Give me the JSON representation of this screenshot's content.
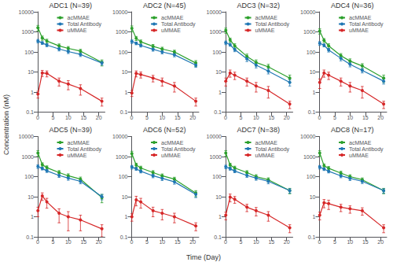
{
  "xlabel": "Time (Day)",
  "ylabel": "Concentration (nM)",
  "chart_data": [
    {
      "type": "line",
      "title": "ADC1 (N=39)",
      "x": [
        0.08,
        1.5,
        3,
        7,
        10,
        14,
        21
      ],
      "series": [
        {
          "name": "acMMAE",
          "color": "#2ca02c",
          "values": [
            1600,
            500,
            350,
            200,
            150,
            110,
            30
          ],
          "errors": [
            500,
            120,
            80,
            50,
            35,
            25,
            10
          ]
        },
        {
          "name": "Total Antibody",
          "color": "#1f77b4",
          "values": [
            350,
            280,
            220,
            140,
            105,
            75,
            28
          ],
          "errors": [
            70,
            45,
            38,
            28,
            22,
            16,
            6
          ]
        },
        {
          "name": "uMMAE",
          "color": "#d62728",
          "values": [
            0.8,
            9,
            8.5,
            3.5,
            2.5,
            1.5,
            0.35
          ],
          "errors": [
            0.3,
            3,
            2.8,
            1.5,
            1.2,
            0.8,
            0.15
          ]
        }
      ],
      "xlim": [
        -0.5,
        22
      ],
      "xticks": [
        0,
        5,
        10,
        15,
        20
      ],
      "ylim": [
        0.1,
        10000
      ],
      "yticks": [
        0.1,
        1,
        10,
        100,
        1000,
        10000
      ],
      "log": "y",
      "grid": false,
      "legend": "upper right",
      "marker": "circle"
    },
    {
      "type": "line",
      "title": "ADC2 (N=45)",
      "x": [
        0.08,
        1.5,
        3,
        7,
        10,
        14,
        21
      ],
      "series": [
        {
          "name": "acMMAE",
          "color": "#2ca02c",
          "values": [
            1500,
            480,
            320,
            190,
            140,
            100,
            28
          ],
          "errors": [
            480,
            110,
            75,
            45,
            32,
            22,
            9
          ]
        },
        {
          "name": "Total Antibody",
          "color": "#1f77b4",
          "values": [
            330,
            270,
            210,
            135,
            100,
            72,
            22
          ],
          "errors": [
            65,
            42,
            35,
            26,
            20,
            15,
            5
          ]
        },
        {
          "name": "uMMAE",
          "color": "#d62728",
          "values": [
            0.9,
            8.5,
            7.5,
            5,
            3.5,
            2,
            0.35
          ],
          "errors": [
            0.3,
            2.8,
            2.5,
            1.8,
            1.5,
            1.0,
            0.15
          ]
        }
      ],
      "xlim": [
        -0.5,
        22
      ],
      "xticks": [
        0,
        5,
        10,
        15,
        20
      ],
      "ylim": [
        0.1,
        10000
      ],
      "yticks": [
        0.1,
        1,
        10,
        100,
        1000,
        10000
      ],
      "log": "y",
      "grid": false,
      "legend": "upper right",
      "marker": "circle"
    },
    {
      "type": "line",
      "title": "ADC3 (N=32)",
      "x": [
        0.08,
        1.5,
        3,
        7,
        10,
        14,
        21
      ],
      "series": [
        {
          "name": "acMMAE",
          "color": "#2ca02c",
          "values": [
            1200,
            400,
            200,
            60,
            30,
            18,
            5
          ],
          "errors": [
            350,
            90,
            55,
            18,
            10,
            6,
            2
          ]
        },
        {
          "name": "Total Antibody",
          "color": "#1f77b4",
          "values": [
            290,
            230,
            130,
            45,
            22,
            11,
            3
          ],
          "errors": [
            60,
            38,
            27,
            12,
            6,
            3,
            1
          ]
        },
        {
          "name": "uMMAE",
          "color": "#d62728",
          "values": [
            3.5,
            9,
            7,
            3.5,
            2,
            1.2,
            0.25
          ],
          "errors": [
            1.5,
            3.5,
            2.8,
            1.5,
            1.0,
            0.7,
            0.1
          ]
        }
      ],
      "xlim": [
        -0.5,
        22
      ],
      "xticks": [
        0,
        5,
        10,
        15,
        20
      ],
      "ylim": [
        0.1,
        10000
      ],
      "yticks": [
        0.1,
        1,
        10,
        100,
        1000,
        10000
      ],
      "log": "y",
      "grid": false,
      "legend": "upper right",
      "marker": "circle"
    },
    {
      "type": "line",
      "title": "ADC4 (N=36)",
      "x": [
        0.08,
        1.5,
        3,
        7,
        10,
        14,
        21
      ],
      "series": [
        {
          "name": "acMMAE",
          "color": "#2ca02c",
          "values": [
            1100,
            380,
            200,
            65,
            35,
            20,
            5
          ],
          "errors": [
            320,
            85,
            55,
            18,
            10,
            6,
            2
          ]
        },
        {
          "name": "Total Antibody",
          "color": "#1f77b4",
          "values": [
            270,
            215,
            125,
            48,
            24,
            12,
            3.5
          ],
          "errors": [
            58,
            36,
            26,
            12,
            6,
            3,
            1
          ]
        },
        {
          "name": "uMMAE",
          "color": "#d62728",
          "values": [
            3,
            9,
            7,
            3.5,
            2,
            1.2,
            0.25
          ],
          "errors": [
            1.5,
            3.5,
            2.8,
            1.5,
            1.0,
            0.7,
            0.1
          ]
        }
      ],
      "xlim": [
        -0.5,
        22
      ],
      "xticks": [
        0,
        5,
        10,
        15,
        20
      ],
      "ylim": [
        0.1,
        10000
      ],
      "yticks": [
        0.1,
        1,
        10,
        100,
        1000,
        10000
      ],
      "log": "y",
      "grid": false,
      "legend": "upper right",
      "marker": "circle"
    },
    {
      "type": "line",
      "title": "ADC5 (N=39)",
      "x": [
        0.08,
        1.5,
        3,
        7,
        10,
        14,
        21
      ],
      "series": [
        {
          "name": "acMMAE",
          "color": "#2ca02c",
          "values": [
            1500,
            400,
            280,
            160,
            110,
            75,
            9
          ],
          "errors": [
            480,
            90,
            65,
            40,
            28,
            20,
            4
          ]
        },
        {
          "name": "Total Antibody",
          "color": "#1f77b4",
          "values": [
            320,
            255,
            195,
            115,
            85,
            58,
            10
          ],
          "errors": [
            65,
            40,
            34,
            24,
            19,
            14,
            3
          ]
        },
        {
          "name": "uMMAE",
          "color": "#d62728",
          "values": [
            2,
            11,
            5.5,
            1.5,
            1.0,
            0.7,
            0.25
          ],
          "errors": [
            1.0,
            4.5,
            2.8,
            1.0,
            0.8,
            0.5,
            0.15
          ]
        }
      ],
      "xlim": [
        -0.5,
        22
      ],
      "xticks": [
        0,
        5,
        10,
        15,
        20
      ],
      "ylim": [
        0.1,
        10000
      ],
      "yticks": [
        0.1,
        1,
        10,
        100,
        1000,
        10000
      ],
      "log": "y",
      "grid": false,
      "legend": "upper right",
      "marker": "circle"
    },
    {
      "type": "line",
      "title": "ADC6 (N=52)",
      "x": [
        0.08,
        1.5,
        3,
        7,
        10,
        14,
        21
      ],
      "series": [
        {
          "name": "acMMAE",
          "color": "#2ca02c",
          "values": [
            1400,
            380,
            270,
            160,
            110,
            75,
            15
          ],
          "errors": [
            440,
            85,
            62,
            38,
            26,
            18,
            5
          ]
        },
        {
          "name": "Total Antibody",
          "color": "#1f77b4",
          "values": [
            300,
            245,
            185,
            110,
            82,
            55,
            13
          ],
          "errors": [
            62,
            38,
            32,
            22,
            18,
            13,
            4
          ]
        },
        {
          "name": "uMMAE",
          "color": "#d62728",
          "values": [
            1,
            7,
            5.5,
            2,
            1.5,
            1.0,
            0.35
          ],
          "errors": [
            0.4,
            3.5,
            2.8,
            1.0,
            0.8,
            0.5,
            0.15
          ]
        }
      ],
      "xlim": [
        -0.5,
        22
      ],
      "xticks": [
        0,
        5,
        10,
        15,
        20
      ],
      "ylim": [
        0.1,
        10000
      ],
      "yticks": [
        0.1,
        1,
        10,
        100,
        1000,
        10000
      ],
      "log": "y",
      "grid": false,
      "legend": "upper right",
      "marker": "circle"
    },
    {
      "type": "line",
      "title": "ADC7 (N=38)",
      "x": [
        0.08,
        1.5,
        3,
        7,
        10,
        14,
        21
      ],
      "series": [
        {
          "name": "acMMAE",
          "color": "#2ca02c",
          "values": [
            1500,
            380,
            270,
            160,
            100,
            70,
            20
          ],
          "errors": [
            480,
            85,
            62,
            38,
            25,
            17,
            6
          ]
        },
        {
          "name": "Total Antibody",
          "color": "#1f77b4",
          "values": [
            310,
            250,
            190,
            115,
            85,
            58,
            20
          ],
          "errors": [
            64,
            40,
            33,
            23,
            19,
            14,
            5
          ]
        },
        {
          "name": "uMMAE",
          "color": "#d62728",
          "values": [
            1.2,
            9.5,
            7.5,
            3,
            2,
            1.2,
            0.28
          ],
          "errors": [
            0.5,
            4.0,
            2.8,
            1.2,
            0.9,
            0.6,
            0.12
          ]
        }
      ],
      "xlim": [
        -0.5,
        22
      ],
      "xticks": [
        0,
        5,
        10,
        15,
        20
      ],
      "ylim": [
        0.1,
        10000
      ],
      "yticks": [
        0.1,
        1,
        10,
        100,
        1000,
        10000
      ],
      "log": "y",
      "grid": false,
      "legend": "upper right",
      "marker": "circle"
    },
    {
      "type": "line",
      "title": "ADC8 (N=17)",
      "x": [
        0.08,
        1.5,
        3,
        7,
        10,
        14,
        21
      ],
      "series": [
        {
          "name": "acMMAE",
          "color": "#2ca02c",
          "values": [
            1500,
            350,
            260,
            150,
            100,
            70,
            20
          ],
          "errors": [
            450,
            80,
            60,
            35,
            24,
            16,
            6
          ]
        },
        {
          "name": "Total Antibody",
          "color": "#1f77b4",
          "values": [
            300,
            240,
            185,
            110,
            82,
            58,
            20
          ],
          "errors": [
            60,
            38,
            32,
            22,
            18,
            13,
            5
          ]
        },
        {
          "name": "uMMAE",
          "color": "#d62728",
          "values": [
            1.2,
            5,
            4.5,
            3,
            2.5,
            2,
            0.28
          ],
          "errors": [
            0.5,
            2.2,
            2.2,
            1.2,
            1.0,
            0.8,
            0.12
          ]
        }
      ],
      "xlim": [
        -0.5,
        22
      ],
      "xticks": [
        0,
        5,
        10,
        15,
        20
      ],
      "ylim": [
        0.1,
        10000
      ],
      "yticks": [
        0.1,
        1,
        10,
        100,
        1000,
        10000
      ],
      "log": "y",
      "grid": false,
      "legend": "upper right",
      "marker": "circle"
    }
  ]
}
